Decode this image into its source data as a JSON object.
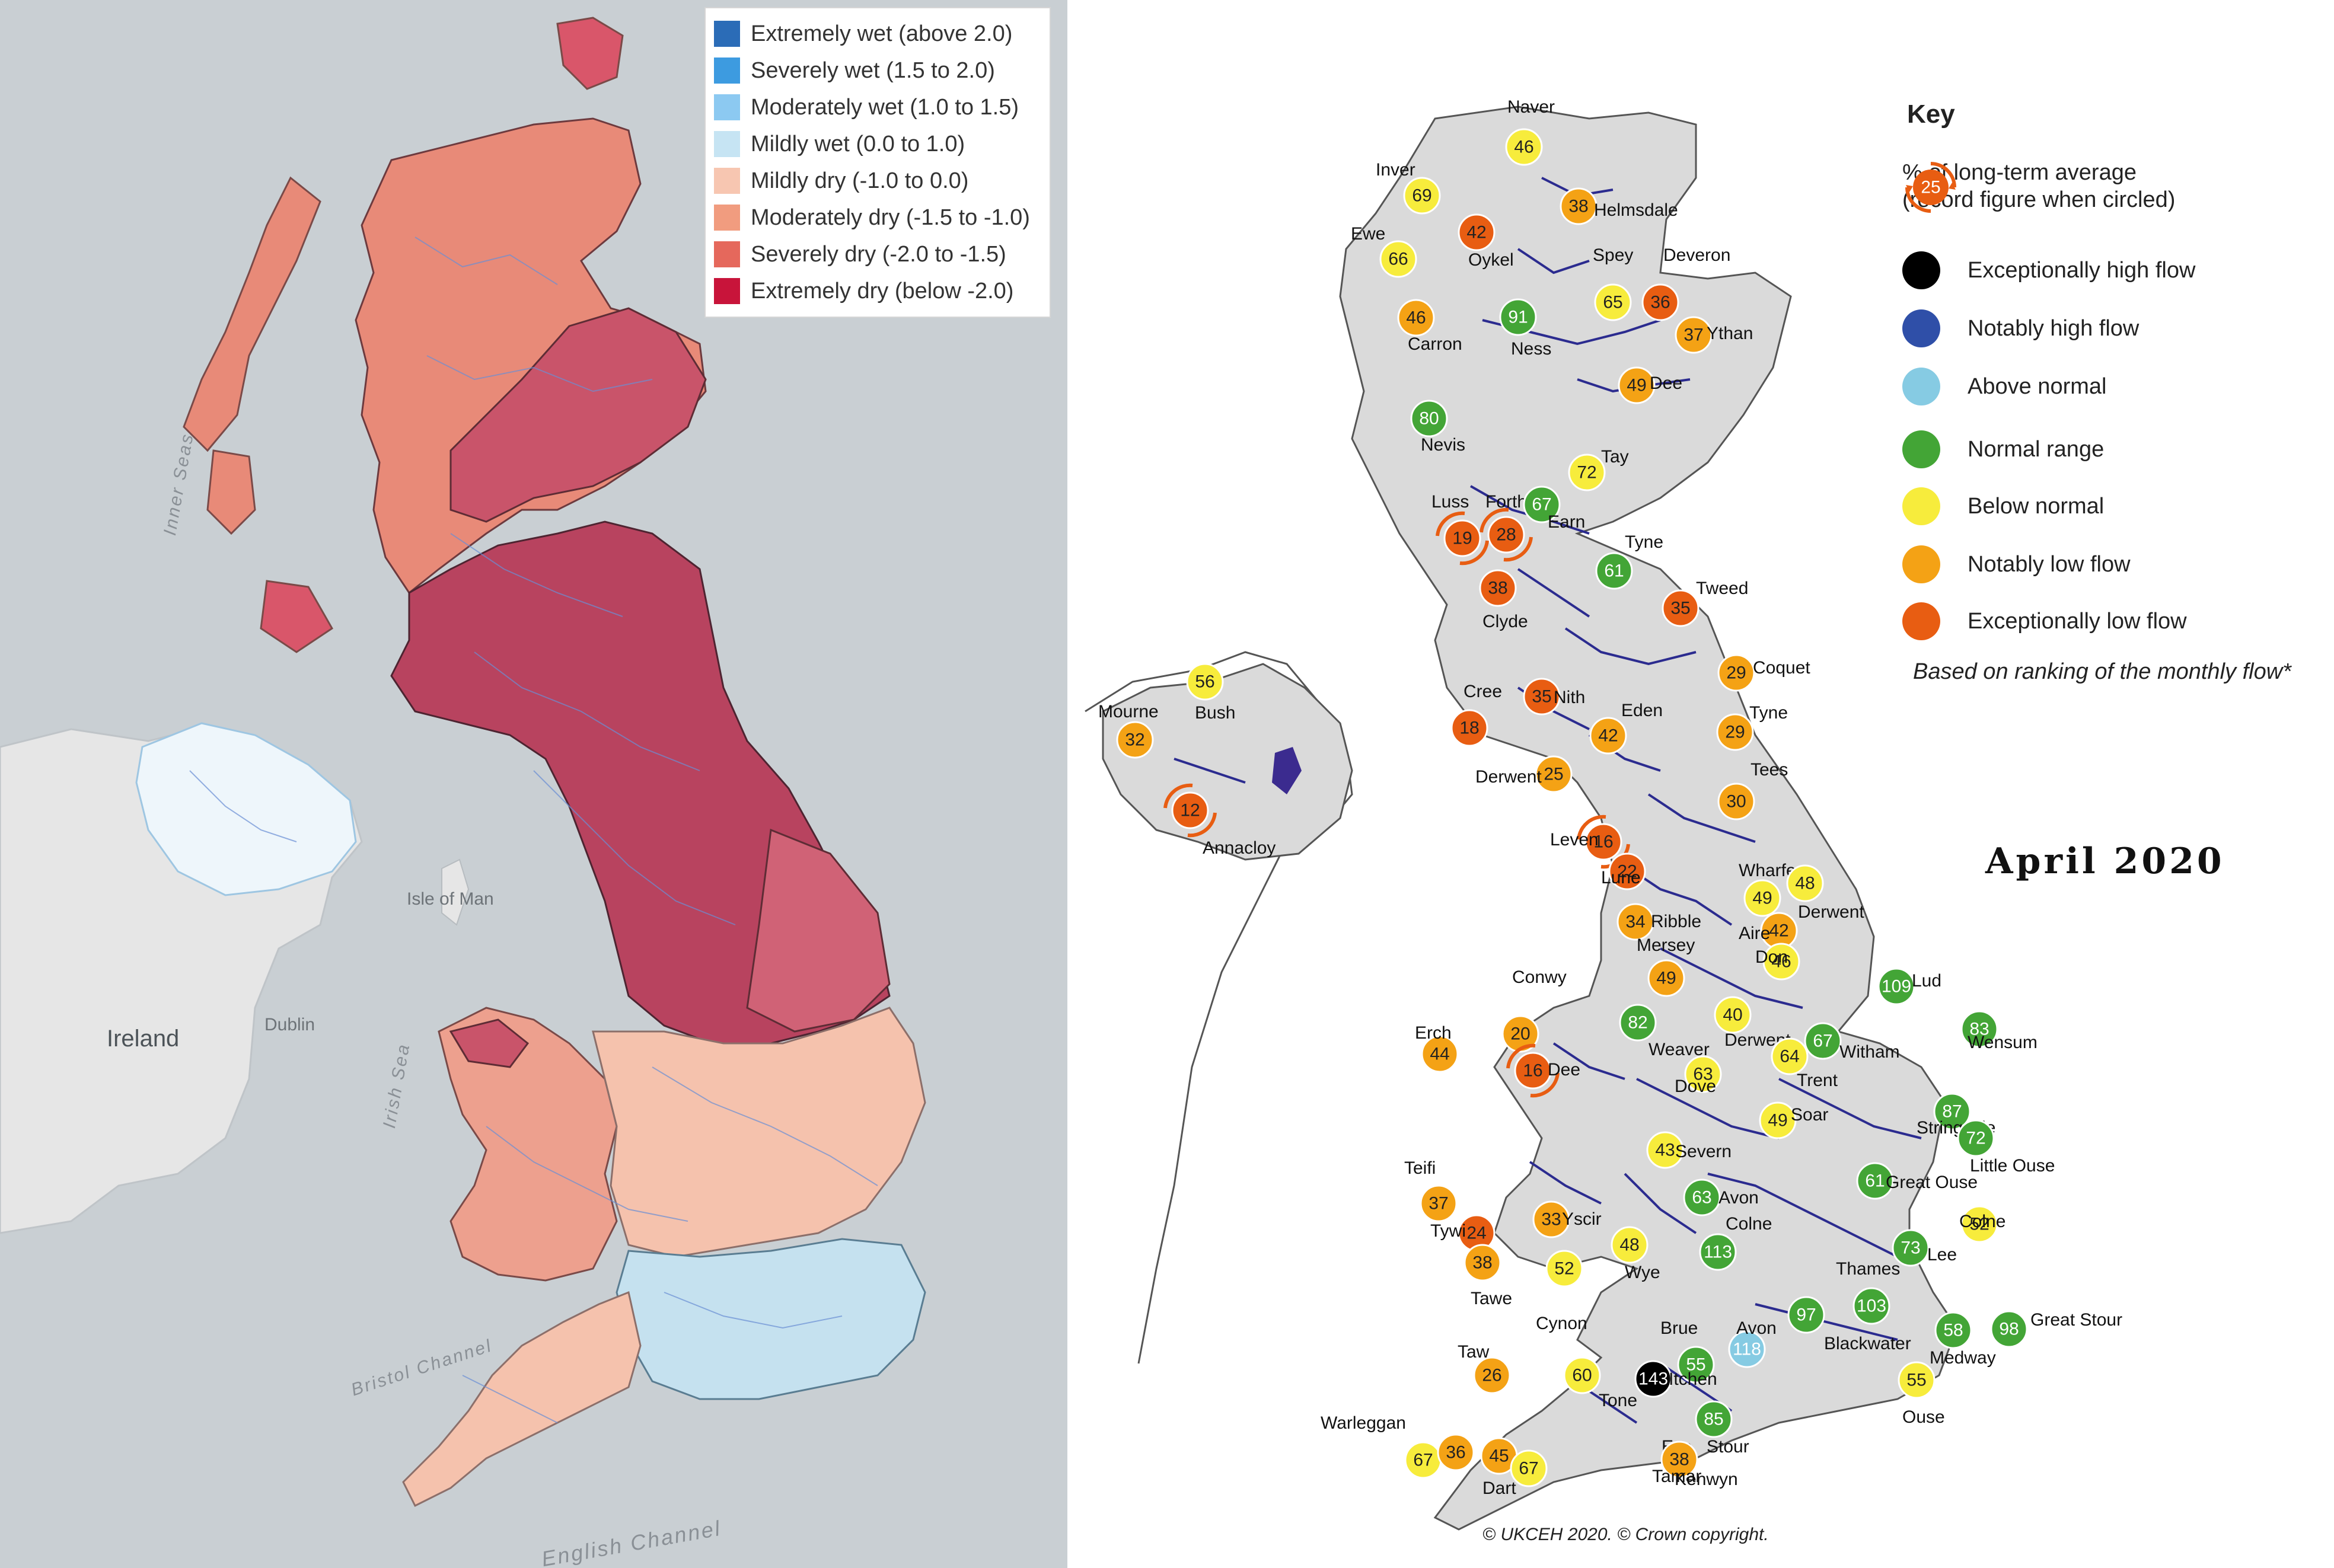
{
  "left_map": {
    "legend": [
      {
        "label": "Extremely wet (above 2.0)",
        "color": "#2b6cb7"
      },
      {
        "label": "Severely wet (1.5 to 2.0)",
        "color": "#3d9be0"
      },
      {
        "label": "Moderately wet (1.0 to 1.5)",
        "color": "#8cc9f1"
      },
      {
        "label": "Mildly wet (0.0 to 1.0)",
        "color": "#c6e4f3"
      },
      {
        "label": "Mildly dry (-1.0 to 0.0)",
        "color": "#f7c6b1"
      },
      {
        "label": "Moderately dry (-1.5 to -1.0)",
        "color": "#f19c7f"
      },
      {
        "label": "Severely dry (-2.0 to -1.5)",
        "color": "#e5685c"
      },
      {
        "label": "Extremely dry (below -2.0)",
        "color": "#c8143a"
      }
    ],
    "place_labels": {
      "inner_seas": "Inner Seas",
      "isle_of_man": "Isle of Man",
      "irish_sea": "Irish Sea",
      "ireland": "Ireland",
      "dublin": "Dublin",
      "bristol_channel": "Bristol Channel",
      "english_channel": "English Channel"
    }
  },
  "right_map": {
    "key": {
      "title": "Key",
      "record_marker_value": "25",
      "record_text": "% of long-term average (record figure when circled)",
      "items": [
        {
          "label": "Exceptionally high flow",
          "color": "#000000"
        },
        {
          "label": "Notably high flow",
          "color": "#2f4fa8"
        },
        {
          "label": "Above normal",
          "color": "#86cbe3"
        },
        {
          "label": "Normal range",
          "color": "#43a536"
        },
        {
          "label": "Below normal",
          "color": "#f7ec3c"
        },
        {
          "label": "Notably low flow",
          "color": "#f4a215"
        },
        {
          "label": "Exceptionally low flow",
          "color": "#e85d12"
        }
      ],
      "note": "Based on ranking of the monthly flow*"
    },
    "month": "April 2020",
    "copyright": "© UKCEH 2020. © Crown copyright.",
    "sites": [
      {
        "name": "Naver",
        "value": 46,
        "class": "below"
      },
      {
        "name": "Inver",
        "value": 69,
        "class": "below"
      },
      {
        "name": "Helmsdale",
        "value": 38,
        "class": "notably_low"
      },
      {
        "name": "Oykel",
        "value": 42,
        "class": "exceptionally_low"
      },
      {
        "name": "Ewe",
        "value": 66,
        "class": "below"
      },
      {
        "name": "Spey",
        "value": 65,
        "class": "below"
      },
      {
        "name": "Deveron",
        "value": 36,
        "class": "exceptionally_low"
      },
      {
        "name": "Ythan",
        "value": 37,
        "class": "notably_low"
      },
      {
        "name": "Carron",
        "value": 46,
        "class": "notably_low"
      },
      {
        "name": "Ness",
        "value": 91,
        "class": "normal"
      },
      {
        "name": "Dee",
        "value": 49,
        "class": "notably_low"
      },
      {
        "name": "Nevis",
        "value": 80,
        "class": "normal"
      },
      {
        "name": "Tay",
        "value": 72,
        "class": "below"
      },
      {
        "name": "Forth",
        "value": 28,
        "class": "exceptionally_low",
        "record": true
      },
      {
        "name": "Luss",
        "value": 19,
        "class": "exceptionally_low",
        "record": true
      },
      {
        "name": "Earn",
        "value": 67,
        "class": "normal"
      },
      {
        "name": "Tyne",
        "value": 61,
        "class": "normal"
      },
      {
        "name": "Tweed",
        "value": 35,
        "class": "exceptionally_low"
      },
      {
        "name": "Clyde",
        "value": 38,
        "class": "exceptionally_low"
      },
      {
        "name": "Coquet",
        "value": 29,
        "class": "notably_low"
      },
      {
        "name": "Mourne",
        "value": 32,
        "class": "notably_low"
      },
      {
        "name": "Bush",
        "value": 56,
        "class": "below"
      },
      {
        "name": "Cree",
        "value": 18,
        "class": "exceptionally_low"
      },
      {
        "name": "Nith",
        "value": 35,
        "class": "exceptionally_low"
      },
      {
        "name": "Eden",
        "value": 42,
        "class": "notably_low"
      },
      {
        "name": "Tyne",
        "value": 29,
        "class": "notably_low"
      },
      {
        "name": "Derwent",
        "value": 25,
        "class": "notably_low"
      },
      {
        "name": "Tees",
        "value": 30,
        "class": "notably_low"
      },
      {
        "name": "Annacloy",
        "value": 12,
        "class": "exceptionally_low",
        "record": true
      },
      {
        "name": "Leven",
        "value": 16,
        "class": "exceptionally_low",
        "record": true
      },
      {
        "name": "Lune",
        "value": 22,
        "class": "exceptionally_low"
      },
      {
        "name": "Wharfe",
        "value": 49,
        "class": "below"
      },
      {
        "name": "Derwent",
        "value": 48,
        "class": "below"
      },
      {
        "name": "Ribble",
        "value": 34,
        "class": "notably_low"
      },
      {
        "name": "Aire",
        "value": 42,
        "class": "notably_low"
      },
      {
        "name": "Don",
        "value": 46,
        "class": "below"
      },
      {
        "name": "Mersey",
        "value": 49,
        "class": "notably_low"
      },
      {
        "name": "Lud",
        "value": 109,
        "class": "normal"
      },
      {
        "name": "Conwy",
        "value": 20,
        "class": "notably_low"
      },
      {
        "name": "Weaver",
        "value": 82,
        "class": "normal"
      },
      {
        "name": "Derwent",
        "value": 40,
        "class": "below"
      },
      {
        "name": "Erch",
        "value": 44,
        "class": "notably_low"
      },
      {
        "name": "Dee",
        "value": 16,
        "class": "exceptionally_low",
        "record": true
      },
      {
        "name": "Dove",
        "value": 63,
        "class": "below"
      },
      {
        "name": "Trent",
        "value": 64,
        "class": "below"
      },
      {
        "name": "Witham",
        "value": 67,
        "class": "normal"
      },
      {
        "name": "Wensum",
        "value": 83,
        "class": "normal"
      },
      {
        "name": "Soar",
        "value": 49,
        "class": "below"
      },
      {
        "name": "Stringside",
        "value": 87,
        "class": "normal"
      },
      {
        "name": "Little Ouse",
        "value": 72,
        "class": "normal"
      },
      {
        "name": "Severn",
        "value": 43,
        "class": "below"
      },
      {
        "name": "Teifi",
        "value": 37,
        "class": "notably_low"
      },
      {
        "name": "Avon",
        "value": 63,
        "class": "normal"
      },
      {
        "name": "Great Ouse",
        "value": 61,
        "class": "normal"
      },
      {
        "name": "Yscir",
        "value": 33,
        "class": "notably_low"
      },
      {
        "name": "Tywi",
        "value": 24,
        "class": "exceptionally_low"
      },
      {
        "name": "Colne",
        "value": 52,
        "class": "below"
      },
      {
        "name": "Colne",
        "value": 113,
        "class": "normal"
      },
      {
        "name": "Lee",
        "value": 73,
        "class": "normal"
      },
      {
        "name": "Wye",
        "value": 48,
        "class": "below"
      },
      {
        "name": "Tawe",
        "value": 38,
        "class": "notably_low"
      },
      {
        "name": "Cynon",
        "value": 52,
        "class": "below"
      },
      {
        "name": "Thames",
        "value": 103,
        "class": "normal"
      },
      {
        "name": "Blackwater",
        "value": 97,
        "class": "normal"
      },
      {
        "name": "Great Stour",
        "value": 98,
        "class": "normal"
      },
      {
        "name": "Medway",
        "value": 58,
        "class": "normal"
      },
      {
        "name": "Brue",
        "value": 55,
        "class": "normal"
      },
      {
        "name": "Avon",
        "value": 118,
        "class": "above"
      },
      {
        "name": "Taw",
        "value": 26,
        "class": "notably_low"
      },
      {
        "name": "Tone",
        "value": 60,
        "class": "below"
      },
      {
        "name": "Itchen",
        "value": 143,
        "class": "exceptionally_high"
      },
      {
        "name": "Ouse",
        "value": 55,
        "class": "below"
      },
      {
        "name": "Warleggan",
        "value": 67,
        "class": "below"
      },
      {
        "name": "Exe",
        "value": 36,
        "class": "notably_low"
      },
      {
        "name": "Stour",
        "value": 85,
        "class": "normal"
      },
      {
        "name": "Tamar",
        "value": 38,
        "class": "notably_low"
      },
      {
        "name": "Dart",
        "value": 45,
        "class": "notably_low"
      },
      {
        "name": "Kenwyn",
        "value": 67,
        "class": "below"
      }
    ]
  }
}
